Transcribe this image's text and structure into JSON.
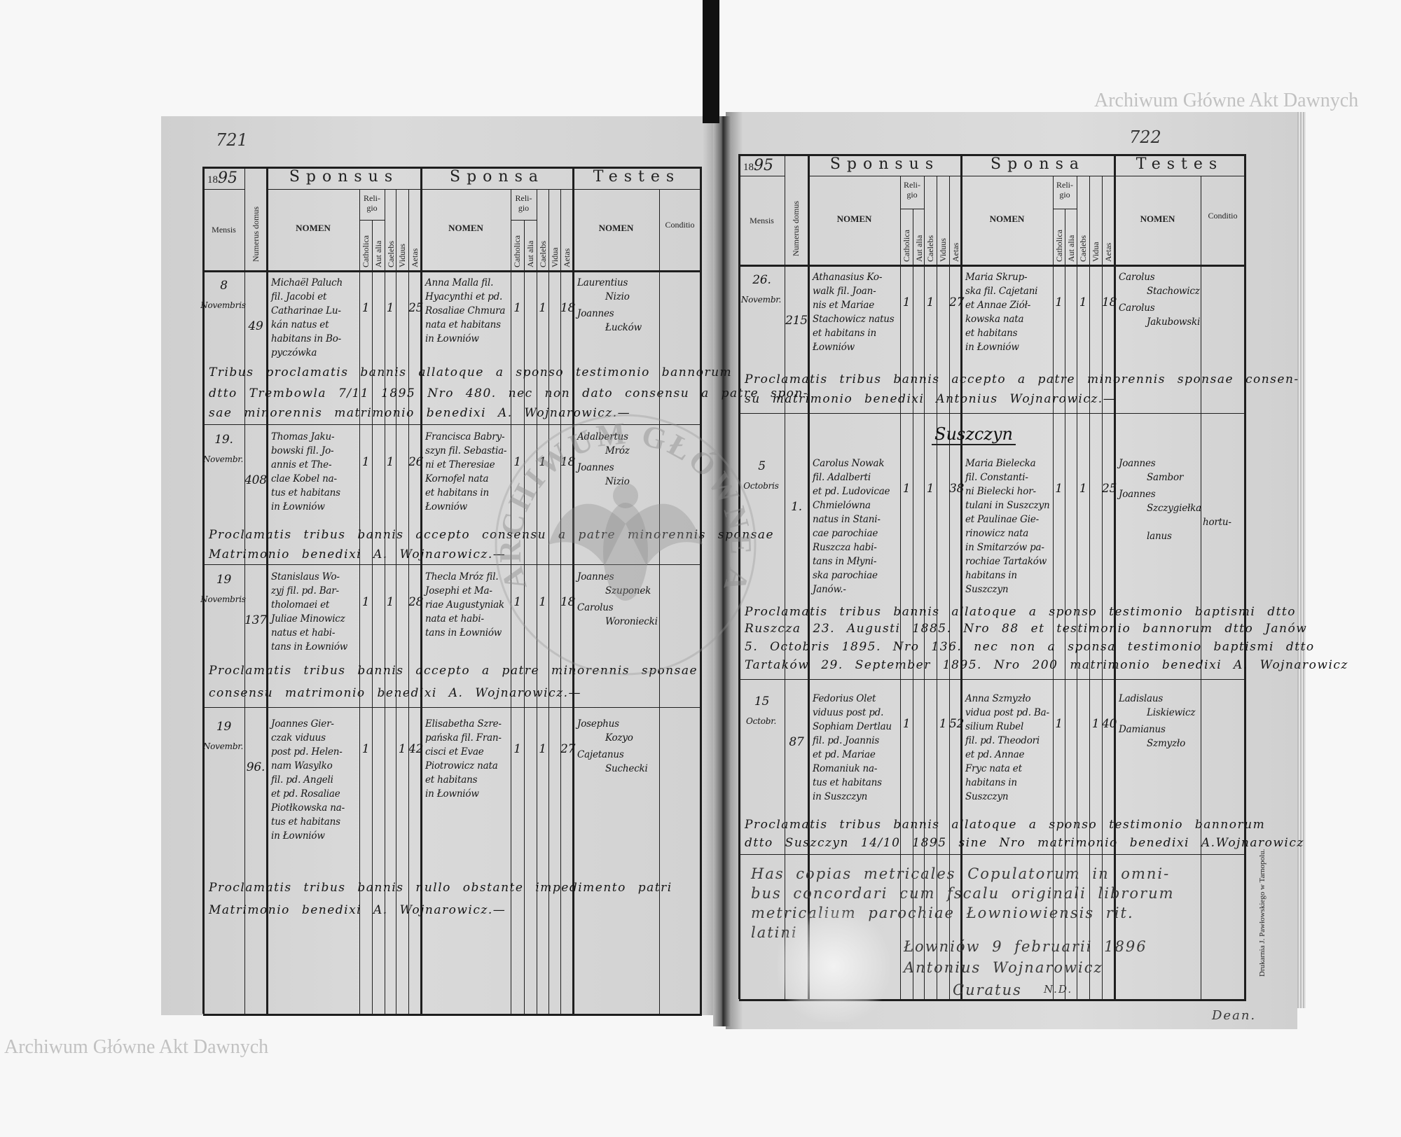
{
  "document": {
    "page_numbers": {
      "left": "721",
      "right": "722"
    },
    "watermark_text": "Archiwum Główne Akt Dawnych",
    "stamp_text": "ARCHIWUM GŁÓWNE AKT DAWNYCH",
    "printer_imprint": "Drukarnia J. Pawłowskiego w Tarnopolu.",
    "header": {
      "year_printed": "18",
      "year_handwritten": "95",
      "mensis": "Mensis",
      "numerus_domus": "Numerus domus",
      "sponsus": "Sponsus",
      "sponsa": "Sponsa",
      "testes": "Testes",
      "nomen": "NOMEN",
      "religio": "Reli-\ngio",
      "catholica": "Catholica",
      "aut_alia": "Aut alia",
      "caelebs": "Caelebs",
      "viduus": "Viduus",
      "vidua": "Vidua",
      "aetas": "Aetas",
      "conditio": "Conditio"
    },
    "left_page": {
      "entries": [
        {
          "day": "8",
          "month": "Novembris",
          "numerus": "49",
          "sponsus": [
            "Michaël Paluch",
            "fil. Jacobi et",
            "Catharinae Lu-",
            "kán natus et",
            "habitans in Bo-",
            "pyczówka"
          ],
          "sponsus_religio": {
            "catholica": "1",
            "aut_alia": "",
            "caelebs": "1",
            "viduus": "",
            "aetas": "25"
          },
          "sponsa": [
            "Anna Malla fil.",
            "Hyacynthi et pd.",
            "Rosaliae Chmura",
            "nata et habitans",
            "in Łowniów"
          ],
          "sponsa_religio": {
            "catholica": "1",
            "aut_alia": "",
            "caelebs": "1",
            "vidua": "",
            "aetas": "18"
          },
          "testes": [
            "Laurentius",
            "Nizio",
            "Joannes",
            "Łucków"
          ],
          "conditio": [],
          "remark": [
            "Tribus proclamatis bannis allatoque a sponso testimonio bannorum",
            "dtto Trembowla 7/11 1895 Nro 480. nec non dato consensu a patre spon-",
            "sae minorennis matrimonio benedixi A. Wojnarowicz.—"
          ]
        },
        {
          "day": "19.",
          "month": "Novembr.",
          "numerus": "408",
          "sponsus": [
            "Thomas Jaku-",
            "bowski fil. Jo-",
            "annis et The-",
            "clae Kobel na-",
            "tus et habitans",
            "in Łowniów"
          ],
          "sponsus_religio": {
            "catholica": "1",
            "aut_alia": "",
            "caelebs": "1",
            "viduus": "",
            "aetas": "26"
          },
          "sponsa": [
            "Francisca Babry-",
            "szyn fil. Sebastia-",
            "ni et Theresiae",
            "Kornofel nata",
            "et habitans in",
            "Łowniów"
          ],
          "sponsa_religio": {
            "catholica": "1",
            "aut_alia": "",
            "caelebs": "1",
            "vidua": "",
            "aetas": "18"
          },
          "testes": [
            "Adalbertus",
            "Mróz",
            "Joannes",
            "Nizio"
          ],
          "conditio": [],
          "remark": [
            "Proclamatis tribus bannis accepto consensu a patre minorennis sponsae",
            "Matrimonio benedixi A. Wojnarowicz.—"
          ]
        },
        {
          "day": "19",
          "month": "Novembris",
          "numerus": "137",
          "sponsus": [
            "Stanislaus Wo-",
            "zyj fil. pd. Bar-",
            "tholomaei et",
            "Juliae Minowicz",
            "natus et habi-",
            "tans in Łowniów"
          ],
          "sponsus_religio": {
            "catholica": "1",
            "aut_alia": "",
            "caelebs": "1",
            "viduus": "",
            "aetas": "28"
          },
          "sponsa": [
            "Thecla Mróz fil.",
            "Josephi et Ma-",
            "riae Augustyniak",
            "nata et habi-",
            "tans in Łowniów"
          ],
          "sponsa_religio": {
            "catholica": "1",
            "aut_alia": "",
            "caelebs": "1",
            "vidua": "",
            "aetas": "18"
          },
          "testes": [
            "Joannes",
            "Szuponek",
            "Carolus",
            "Woroniecki"
          ],
          "conditio": [],
          "remark": [
            "Proclamatis tribus bannis accepto a patre minorennis sponsae",
            "consensu matrimonio benedixi A. Wojnarowicz.—"
          ]
        },
        {
          "day": "19",
          "month": "Novembr.",
          "numerus": "96.",
          "sponsus": [
            "Joannes Gier-",
            "czak viduus",
            "post pd. Helen-",
            "nam Wasylko",
            "fil. pd. Angeli",
            "et pd. Rosaliae",
            "Piotłkowska na-",
            "tus et habitans",
            "in Łowniów"
          ],
          "sponsus_religio": {
            "catholica": "1",
            "aut_alia": "",
            "caelebs": "",
            "viduus": "1",
            "aetas": "42"
          },
          "sponsa": [
            "Elisabetha Szre-",
            "pańska fil. Fran-",
            "cisci et Evae",
            "Piotrowicz nata",
            "et habitans",
            "in Łowniów"
          ],
          "sponsa_religio": {
            "catholica": "1",
            "aut_alia": "",
            "caelebs": "1",
            "vidua": "",
            "aetas": "27"
          },
          "testes": [
            "Josephus",
            "Kozyo",
            "Cajetanus",
            "Suchecki"
          ],
          "conditio": [],
          "remark": [
            "Proclamatis tribus bannis nullo obstante impedimento patri",
            "Matrimonio benedixi A. Wojnarowicz.—"
          ]
        }
      ]
    },
    "right_page": {
      "parish_heading": "Suszczyn",
      "entries": [
        {
          "day": "26.",
          "month": "Novembr.",
          "numerus": "215",
          "sponsus": [
            "Athanasius Ko-",
            "walk fil. Joan-",
            "nis et Mariae",
            "Stachowicz natus",
            "et habitans in",
            "Łowniów"
          ],
          "sponsus_religio": {
            "catholica": "1",
            "aut_alia": "",
            "caelebs": "1",
            "viduus": "",
            "aetas": "27"
          },
          "sponsa": [
            "Maria Skrup-",
            "ska fil. Cajetani",
            "et Annae Ziół-",
            "kowska nata",
            "et habitans",
            "in Łowniów"
          ],
          "sponsa_religio": {
            "catholica": "1",
            "aut_alia": "",
            "caelebs": "1",
            "vidua": "",
            "aetas": "18"
          },
          "testes": [
            "Carolus",
            "Stachowicz",
            "Carolus",
            "Jakubowski"
          ],
          "conditio": [],
          "remark": [
            "Proclamatis tribus bannis accepto a patre minorennis sponsae consen-",
            "su matrimonio benedixi Antonius Wojnarowicz.—"
          ]
        },
        {
          "day": "5",
          "month": "Octobris",
          "numerus": "1.",
          "sponsus": [
            "Carolus Nowak",
            "fil. Adalberti",
            "et pd. Ludovicae",
            "Chmielówna",
            "natus in Stani-",
            "cae parochiae",
            "Ruszcza habi-",
            "tans in Młyni-",
            "ska parochiae",
            "Janów.-"
          ],
          "sponsus_religio": {
            "catholica": "1",
            "aut_alia": "",
            "caelebs": "1",
            "viduus": "",
            "aetas": "38"
          },
          "sponsa": [
            "Maria Bielecka",
            "fil. Constanti-",
            "ni Bielecki hor-",
            "tulani in Suszczyn",
            "et Paulinae Gie-",
            "rinowicz nata",
            "in Smitarzów pa-",
            "rochiae Tartaków",
            "habitans in",
            "Suszczyn"
          ],
          "sponsa_religio": {
            "catholica": "1",
            "aut_alia": "",
            "caelebs": "1",
            "vidua": "",
            "aetas": "25"
          },
          "testes": [
            "Joannes",
            "Sambor",
            "Joannes",
            "Szczygiełka",
            "",
            "lanus"
          ],
          "conditio": [
            "",
            "",
            "",
            "",
            "hortu-"
          ],
          "remark": [
            "Proclamatis tribus bannis allatoque a sponso testimonio baptismi dtto",
            "Ruszcza 23. Augusti 1885. Nro 88 et testimonio bannorum dtto Janów",
            "5. Octobris 1895. Nro 136. nec non a sponsa testimonio baptismi dtto",
            "Tartaków 29. September 1895. Nro 200 matrimonio benedixi A. Wojnarowicz"
          ]
        },
        {
          "day": "15",
          "month": "Octobr.",
          "numerus": "87",
          "sponsus": [
            "Fedorius Olet",
            "viduus post pd.",
            "Sophiam Dertlau",
            "fil. pd. Joannis",
            "et pd. Mariae",
            "Romaniuk na-",
            "tus et habitans",
            "in Suszczyn"
          ],
          "sponsus_religio": {
            "catholica": "1",
            "aut_alia": "",
            "caelebs": "",
            "viduus": "1",
            "aetas": "52"
          },
          "sponsa": [
            "Anna Szmyzło",
            "vidua post pd. Ba-",
            "silium Rubel",
            "fil. pd. Theodori",
            "et pd. Annae",
            "Fryc nata et",
            "habitans in",
            "Suszczyn"
          ],
          "sponsa_religio": {
            "catholica": "1",
            "aut_alia": "",
            "caelebs": "",
            "vidua": "1",
            "aetas": "40"
          },
          "testes": [
            "Ladislaus",
            "Liskiewicz",
            "Damianus",
            "Szmyzło"
          ],
          "conditio": [],
          "remark": [
            "Proclamatis tribus bannis allatoque a sponso testimonio bannorum",
            "dtto Suszczyn 14/10 1895 sine Nro matrimonio benedixi A.Wojnarowicz"
          ]
        }
      ],
      "certification": {
        "lines": [
          "Has copias metricales Copulatorum in omni-",
          "bus concordari cum fscalu originali librorum",
          "metricalium parochiae Łowniowiensis rit.",
          "latini"
        ],
        "place_date": "Łowniów 9 februarii 1896",
        "signature": "Antonius Wojnarowicz",
        "title": "Curatus",
        "note": "N.D.",
        "dean_signature": "Dean."
      }
    }
  }
}
